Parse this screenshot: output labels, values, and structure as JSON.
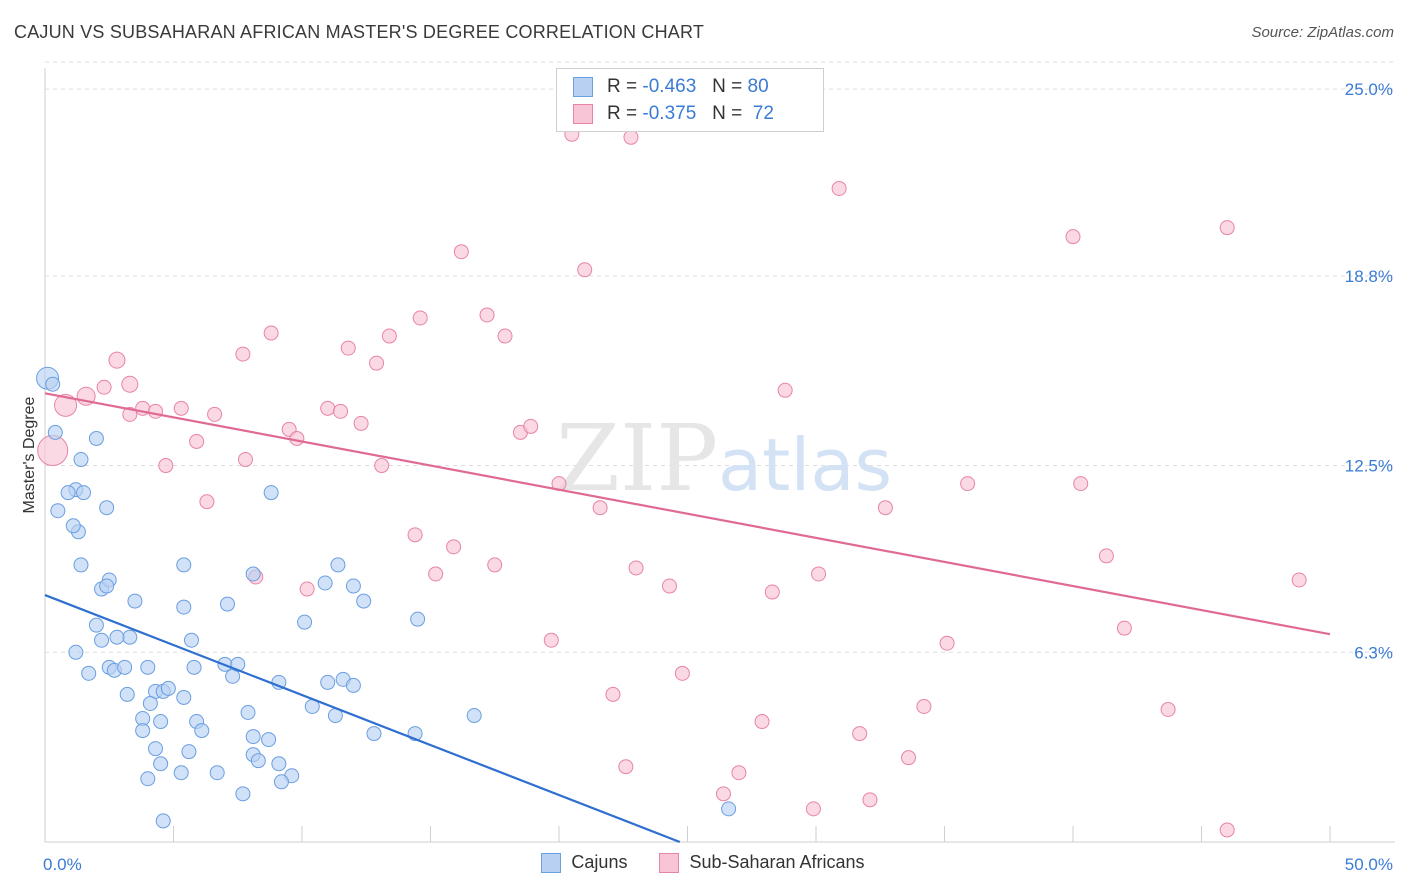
{
  "title": "CAJUN VS SUBSAHARAN AFRICAN MASTER'S DEGREE CORRELATION CHART",
  "source": "Source: ZipAtlas.com",
  "watermark": {
    "zip": "ZIP",
    "atlas": "atlas"
  },
  "stats": [
    {
      "r_label": "R =",
      "r_value": "-0.463",
      "n_label": "N =",
      "n_value": "80",
      "color": "#6a9fe0",
      "fill": "#b8d1f3"
    },
    {
      "r_label": "R =",
      "r_value": "-0.375",
      "n_label": "N =",
      "n_value": "72",
      "color": "#e884a6",
      "fill": "#f7c5d5"
    }
  ],
  "legend": [
    {
      "label": "Cajuns",
      "color": "#6a9fe0",
      "fill": "#b8d1f3"
    },
    {
      "label": "Sub-Saharan Africans",
      "color": "#e884a6",
      "fill": "#f7c5d5"
    }
  ],
  "chart_data": {
    "type": "scatter",
    "title": "CAJUN VS SUBSAHARAN AFRICAN MASTER'S DEGREE CORRELATION CHART",
    "xlabel": "",
    "ylabel": "Master's Degree",
    "xlim": [
      0,
      50
    ],
    "ylim": [
      0,
      25.9
    ],
    "x_tick_labels": [
      {
        "value": 0,
        "label": "0.0%"
      },
      {
        "value": 50,
        "label": "50.0%"
      }
    ],
    "y_tick_labels": [
      {
        "value": 6.3,
        "label": "6.3%"
      },
      {
        "value": 12.5,
        "label": "12.5%"
      },
      {
        "value": 18.8,
        "label": "18.8%"
      },
      {
        "value": 25.0,
        "label": "25.0%"
      }
    ],
    "grid": "horizontal-dashed",
    "series": [
      {
        "name": "Cajuns",
        "color": "#6a9fe0",
        "fill": "#b8d1f3",
        "trend": {
          "x": [
            0,
            24.7
          ],
          "y": [
            8.2,
            0
          ]
        },
        "points": [
          [
            0.1,
            15.4,
            22
          ],
          [
            0.3,
            15.2,
            14
          ],
          [
            0.4,
            13.6,
            14
          ],
          [
            1.2,
            11.7,
            14
          ],
          [
            0.5,
            11.0,
            14
          ],
          [
            2.0,
            13.4,
            14
          ],
          [
            1.3,
            10.3,
            14
          ],
          [
            0.9,
            11.6,
            14
          ],
          [
            1.5,
            11.6,
            14
          ],
          [
            1.1,
            10.5,
            14
          ],
          [
            2.4,
            11.1,
            14
          ],
          [
            1.4,
            9.2,
            14
          ],
          [
            1.4,
            12.7,
            14
          ],
          [
            2.2,
            8.4,
            14
          ],
          [
            2.5,
            8.7,
            14
          ],
          [
            2.4,
            8.5,
            14
          ],
          [
            3.5,
            8.0,
            14
          ],
          [
            2.0,
            7.2,
            14
          ],
          [
            3.3,
            6.8,
            14
          ],
          [
            2.2,
            6.7,
            14
          ],
          [
            2.8,
            6.8,
            14
          ],
          [
            1.2,
            6.3,
            14
          ],
          [
            1.7,
            5.6,
            14
          ],
          [
            2.5,
            5.8,
            14
          ],
          [
            2.7,
            5.7,
            14
          ],
          [
            3.1,
            5.8,
            14
          ],
          [
            4.0,
            5.8,
            14
          ],
          [
            3.2,
            4.9,
            14
          ],
          [
            4.3,
            5.0,
            14
          ],
          [
            4.6,
            5.0,
            14
          ],
          [
            4.8,
            5.1,
            14
          ],
          [
            5.4,
            4.8,
            14
          ],
          [
            5.8,
            5.8,
            14
          ],
          [
            7.3,
            5.5,
            14
          ],
          [
            7.0,
            5.9,
            14
          ],
          [
            4.1,
            4.6,
            14
          ],
          [
            3.8,
            4.1,
            14
          ],
          [
            3.8,
            3.7,
            14
          ],
          [
            4.5,
            4.0,
            14
          ],
          [
            4.3,
            3.1,
            14
          ],
          [
            5.9,
            4.0,
            14
          ],
          [
            6.1,
            3.7,
            14
          ],
          [
            5.6,
            3.0,
            14
          ],
          [
            4.5,
            2.6,
            14
          ],
          [
            4.0,
            2.1,
            14
          ],
          [
            5.3,
            2.3,
            14
          ],
          [
            6.7,
            2.3,
            14
          ],
          [
            8.1,
            3.5,
            14
          ],
          [
            8.1,
            2.9,
            14
          ],
          [
            8.3,
            2.7,
            14
          ],
          [
            9.1,
            2.6,
            14
          ],
          [
            9.6,
            2.2,
            14
          ],
          [
            9.2,
            2.0,
            14
          ],
          [
            7.7,
            1.6,
            14
          ],
          [
            4.6,
            0.7,
            14
          ],
          [
            7.9,
            4.3,
            14
          ],
          [
            7.5,
            5.9,
            14
          ],
          [
            9.1,
            5.3,
            14
          ],
          [
            10.4,
            4.5,
            14
          ],
          [
            11.0,
            5.3,
            14
          ],
          [
            11.6,
            5.4,
            14
          ],
          [
            12.0,
            5.2,
            14
          ],
          [
            11.3,
            4.2,
            14
          ],
          [
            12.8,
            3.6,
            14
          ],
          [
            14.4,
            3.6,
            14
          ],
          [
            16.7,
            4.2,
            14
          ],
          [
            10.1,
            7.3,
            14
          ],
          [
            10.9,
            8.6,
            14
          ],
          [
            11.4,
            9.2,
            14
          ],
          [
            12.0,
            8.5,
            14
          ],
          [
            12.4,
            8.0,
            14
          ],
          [
            14.5,
            7.4,
            14
          ],
          [
            7.1,
            7.9,
            14
          ],
          [
            8.1,
            8.9,
            14
          ],
          [
            8.8,
            11.6,
            14
          ],
          [
            5.4,
            9.2,
            14
          ],
          [
            5.4,
            7.8,
            14
          ],
          [
            5.7,
            6.7,
            14
          ],
          [
            26.6,
            1.1,
            14
          ],
          [
            8.7,
            3.4,
            14
          ]
        ]
      },
      {
        "name": "Sub-Saharan Africans",
        "color": "#e884a6",
        "fill": "#f7c5d5",
        "trend": {
          "x": [
            0,
            50
          ],
          "y": [
            14.9,
            6.9
          ]
        },
        "points": [
          [
            0.3,
            13.0,
            30
          ],
          [
            0.8,
            14.5,
            22
          ],
          [
            1.6,
            14.8,
            18
          ],
          [
            2.3,
            15.1,
            14
          ],
          [
            2.8,
            16.0,
            16
          ],
          [
            3.3,
            15.2,
            16
          ],
          [
            3.3,
            14.2,
            14
          ],
          [
            3.8,
            14.4,
            14
          ],
          [
            4.3,
            14.3,
            14
          ],
          [
            5.3,
            14.4,
            14
          ],
          [
            4.7,
            12.5,
            14
          ],
          [
            5.9,
            13.3,
            14
          ],
          [
            6.6,
            14.2,
            14
          ],
          [
            6.3,
            11.3,
            14
          ],
          [
            7.7,
            16.2,
            14
          ],
          [
            7.8,
            12.7,
            14
          ],
          [
            8.2,
            8.8,
            14
          ],
          [
            8.8,
            16.9,
            14
          ],
          [
            9.5,
            13.7,
            14
          ],
          [
            9.8,
            13.4,
            14
          ],
          [
            10.2,
            8.4,
            14
          ],
          [
            11.0,
            14.4,
            14
          ],
          [
            11.5,
            14.3,
            14
          ],
          [
            11.8,
            16.4,
            14
          ],
          [
            12.3,
            13.9,
            14
          ],
          [
            12.9,
            15.9,
            14
          ],
          [
            13.1,
            12.5,
            14
          ],
          [
            13.4,
            16.8,
            14
          ],
          [
            14.4,
            10.2,
            14
          ],
          [
            14.6,
            17.4,
            14
          ],
          [
            15.2,
            8.9,
            14
          ],
          [
            15.9,
            9.8,
            14
          ],
          [
            16.2,
            19.6,
            14
          ],
          [
            17.2,
            17.5,
            14
          ],
          [
            17.5,
            9.2,
            14
          ],
          [
            17.9,
            16.8,
            14
          ],
          [
            18.5,
            13.6,
            14
          ],
          [
            18.9,
            13.8,
            14
          ],
          [
            19.7,
            6.7,
            14
          ],
          [
            20.0,
            11.9,
            14
          ],
          [
            20.5,
            23.5,
            14
          ],
          [
            21.0,
            19.0,
            14
          ],
          [
            21.6,
            11.1,
            14
          ],
          [
            22.1,
            4.9,
            14
          ],
          [
            22.6,
            2.5,
            14
          ],
          [
            23.0,
            9.1,
            14
          ],
          [
            24.3,
            8.5,
            14
          ],
          [
            24.8,
            5.6,
            14
          ],
          [
            26.4,
            1.6,
            14
          ],
          [
            27.0,
            2.3,
            14
          ],
          [
            27.9,
            4.0,
            14
          ],
          [
            28.3,
            8.3,
            14
          ],
          [
            28.8,
            15.0,
            14
          ],
          [
            29.9,
            1.1,
            14
          ],
          [
            30.1,
            8.9,
            14
          ],
          [
            30.9,
            21.7,
            14
          ],
          [
            31.7,
            3.6,
            14
          ],
          [
            32.1,
            1.4,
            14
          ],
          [
            32.7,
            11.1,
            14
          ],
          [
            33.6,
            2.8,
            14
          ],
          [
            34.2,
            4.5,
            14
          ],
          [
            35.1,
            6.6,
            14
          ],
          [
            35.9,
            11.9,
            14
          ],
          [
            40.0,
            20.1,
            14
          ],
          [
            40.3,
            11.9,
            14
          ],
          [
            41.3,
            9.5,
            14
          ],
          [
            42.0,
            7.1,
            14
          ],
          [
            43.7,
            4.4,
            14
          ],
          [
            46.0,
            20.4,
            14
          ],
          [
            46.0,
            0.4,
            14
          ],
          [
            48.8,
            8.7,
            14
          ],
          [
            22.8,
            23.4,
            14
          ]
        ]
      }
    ]
  }
}
